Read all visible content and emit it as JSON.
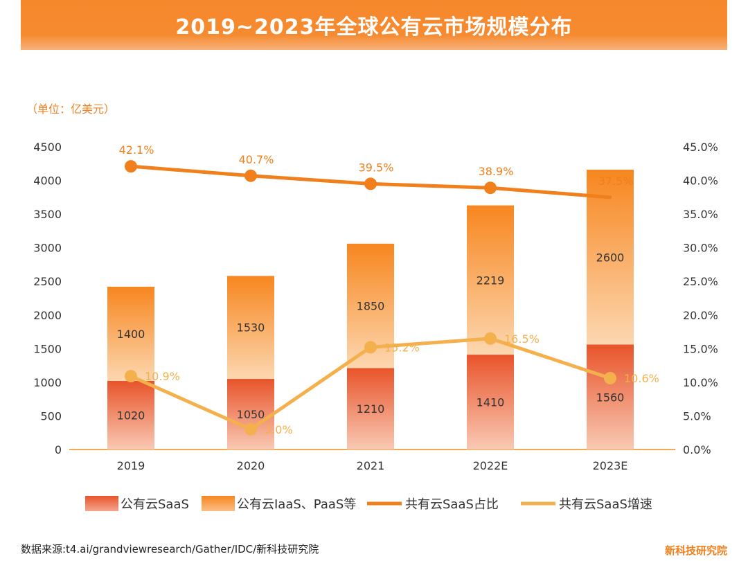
{
  "title": "2019~2023年全球公有云市场规模分布",
  "unit_label": "（单位：亿美元）",
  "source": "数据来源:t4.ai/grandviewresearch/Gather/IDC/新科技研究院",
  "brand": "新科技研究院",
  "colors": {
    "saas": "#e8542a",
    "iaas": "#f7861f",
    "share_line": "#f07f1c",
    "growth_line": "#f4b04d",
    "axis": "#f4a94f",
    "text": "#333333",
    "label_orange": "#f08224"
  },
  "chart_data": {
    "type": "bar",
    "title": "2019~2023年全球公有云市场规模分布",
    "categories": [
      "2019",
      "2020",
      "2021",
      "2022E",
      "2023E"
    ],
    "y_ticks": [
      "0",
      "500",
      "1000",
      "1500",
      "2000",
      "2500",
      "3000",
      "3500",
      "4000",
      "4500"
    ],
    "y2_ticks": [
      "0.0%",
      "5.0%",
      "10.0%",
      "15.0%",
      "20.0%",
      "25.0%",
      "30.0%",
      "35.0%",
      "40.0%",
      "45.0%"
    ],
    "ylim": [
      0,
      4500
    ],
    "y2lim": [
      0,
      45
    ],
    "series": [
      {
        "name": "公有云SaaS",
        "kind": "bar",
        "values": [
          1020,
          1050,
          1210,
          1410,
          1560
        ],
        "labels": [
          "1020",
          "1050",
          "1210",
          "1410",
          "1560"
        ]
      },
      {
        "name": "公有云IaaS、PaaS等",
        "kind": "bar",
        "values": [
          1400,
          1530,
          1850,
          2219,
          2600
        ],
        "labels": [
          "1400",
          "1530",
          "1850",
          "2219",
          "2600"
        ]
      },
      {
        "name": "共有云SaaS占比",
        "kind": "line",
        "axis": "right",
        "values": [
          42.1,
          40.7,
          39.5,
          38.9,
          37.5
        ],
        "labels": [
          "42.1%",
          "40.7%",
          "39.5%",
          "38.9%",
          "37.5%"
        ]
      },
      {
        "name": "共有云SaaS增速",
        "kind": "line",
        "axis": "right",
        "values": [
          10.9,
          3.0,
          15.2,
          16.5,
          10.6
        ],
        "labels": [
          "10.9%",
          "3.0%",
          "15.2%",
          "16.5%",
          "10.6%"
        ]
      }
    ]
  }
}
